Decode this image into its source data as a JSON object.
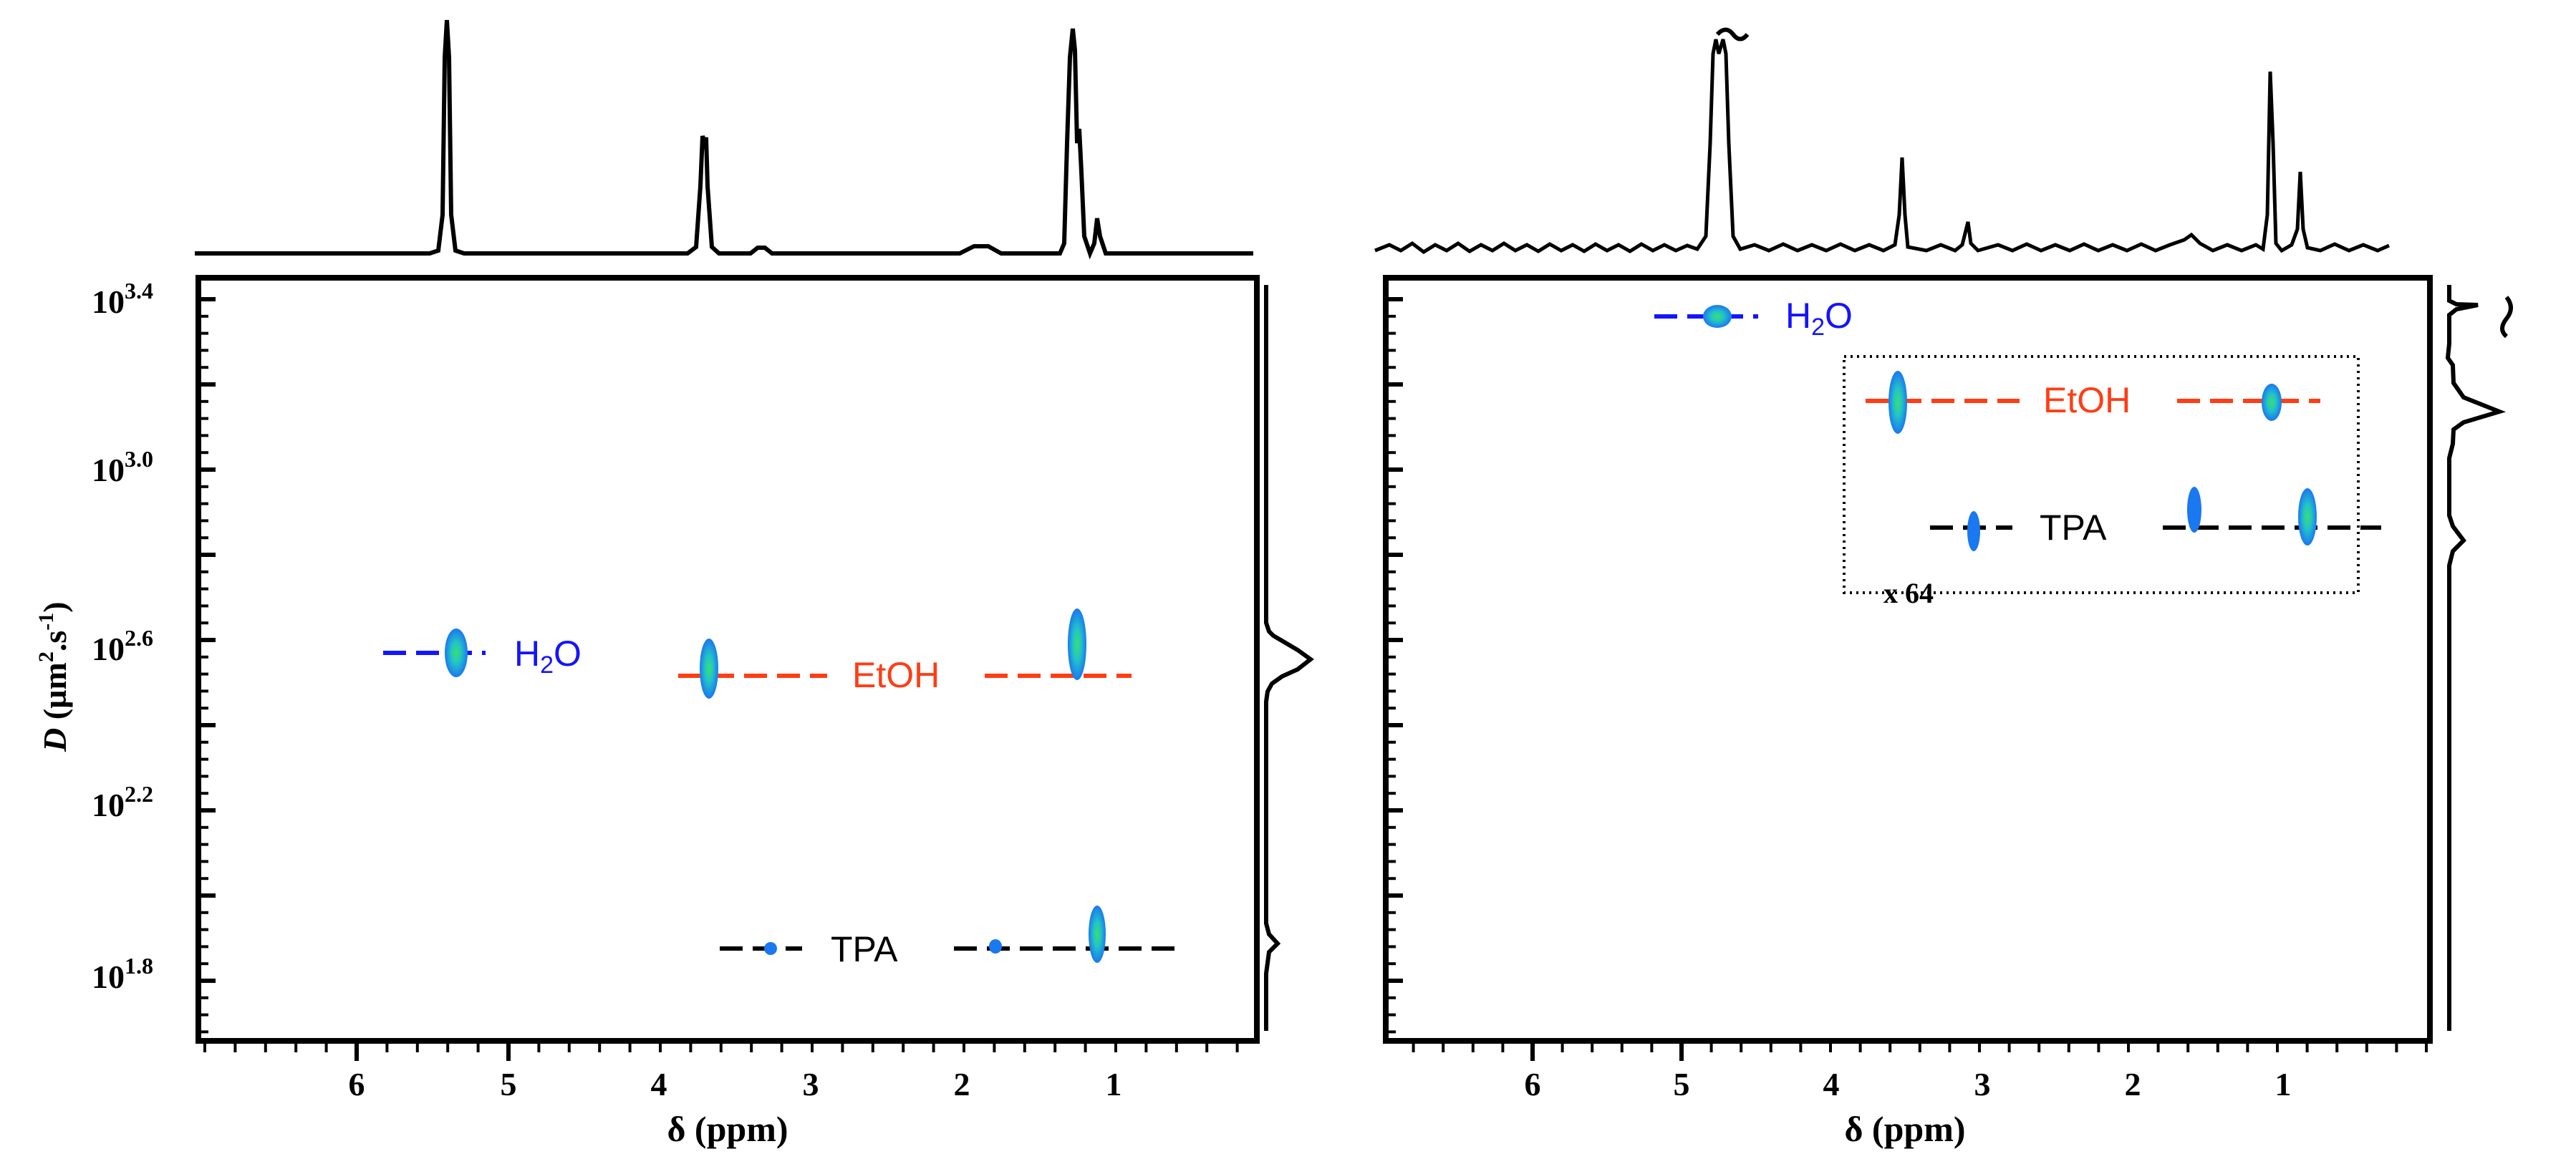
{
  "chart_data": [
    {
      "type": "scatter",
      "title": "",
      "xlabel": "δ (ppm)",
      "ylabel": "D (µm².s⁻¹)",
      "x_tick_labels": [
        "6",
        "5",
        "4",
        "3",
        "2",
        "1"
      ],
      "y_tick_labels": [
        "10^3.4",
        "10^3.0",
        "10^2.6",
        "10^2.2",
        "10^1.8"
      ],
      "xlim": [
        7.0,
        0.0
      ],
      "ylim_log10": [
        1.7,
        3.45
      ],
      "grid": false,
      "series": [
        {
          "name": "H2O",
          "color": "#1414ff",
          "dash_x": [
            5.8,
            5.15
          ],
          "y_log10": 2.58,
          "peaks": [
            {
              "ppm": 5.35,
              "y_log10": 2.58
            }
          ]
        },
        {
          "name": "EtOH",
          "color": "#ff3d14",
          "dash_x": [
            3.9,
            0.7
          ],
          "y_log10": 2.55,
          "peaks": [
            {
              "ppm": 3.6,
              "y_log10": 2.55
            },
            {
              "ppm": 1.17,
              "y_log10": 2.55
            }
          ]
        },
        {
          "name": "TPA",
          "color": "#000000",
          "dash_x": [
            3.6,
            0.55
          ],
          "y_log10": 1.84,
          "peaks": [
            {
              "ppm": 3.22,
              "y_log10": 1.84
            },
            {
              "ppm": 1.75,
              "y_log10": 1.84
            },
            {
              "ppm": 1.05,
              "y_log10": 1.84
            }
          ]
        }
      ]
    },
    {
      "type": "scatter",
      "title": "",
      "xlabel": "δ (ppm)",
      "ylabel": "",
      "x_tick_labels": [
        "6",
        "5",
        "4",
        "3",
        "2",
        "1"
      ],
      "xlim": [
        7.0,
        0.0
      ],
      "inset_label": "x 64",
      "grid": false,
      "series": [
        {
          "name": "H2O",
          "color": "#1414ff",
          "peaks": [
            {
              "ppm": 4.78
            }
          ]
        },
        {
          "name": "EtOH",
          "color": "#ff3d14",
          "peaks": [
            {
              "ppm": 3.6
            },
            {
              "ppm": 1.05
            }
          ]
        },
        {
          "name": "TPA",
          "color": "#000000",
          "peaks": [
            {
              "ppm": 3.05
            },
            {
              "ppm": 1.6
            },
            {
              "ppm": 0.85
            }
          ]
        }
      ]
    }
  ],
  "labels": {
    "h2o_main": "H",
    "h2o_sub": "2",
    "h2o_tail": "O",
    "etoh": "EtOH",
    "tpa": "TPA",
    "inset": "x 64",
    "xlabel": "δ (ppm)",
    "ylabel_d": "D",
    "ylabel_units": " (µm",
    "ylabel_sup2": "2",
    "ylabel_mid": ".s",
    "ylabel_supm1": "-1",
    "ylabel_end": ")",
    "ytick_base": "10",
    "ytick_exps": [
      "3.4",
      "3.0",
      "2.6",
      "2.2",
      "1.8"
    ],
    "xticks": [
      "6",
      "5",
      "4",
      "3",
      "2",
      "1"
    ],
    "break_mark": "~"
  },
  "colors": {
    "h2o": "#1414ff",
    "etoh": "#ff3d14",
    "tpa": "#000000"
  }
}
